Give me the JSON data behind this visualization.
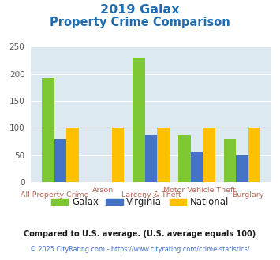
{
  "title_line1": "2019 Galax",
  "title_line2": "Property Crime Comparison",
  "categories_row1": [
    "All Property Crime",
    "",
    "Larceny & Theft",
    "Motor Vehicle Theft",
    "Burglary"
  ],
  "categories_row2": [
    "",
    "Arson",
    "",
    "",
    ""
  ],
  "galax": [
    193,
    0,
    230,
    87,
    80
  ],
  "virginia": [
    78,
    0,
    88,
    56,
    49
  ],
  "national": [
    100,
    100,
    100,
    100,
    100
  ],
  "colors": {
    "galax": "#7dc832",
    "virginia": "#4472c4",
    "national": "#ffc000"
  },
  "ylim": [
    0,
    250
  ],
  "yticks": [
    0,
    50,
    100,
    150,
    200,
    250
  ],
  "bg_color": "#dce9f0",
  "title_color": "#1f6cb0",
  "footer1": "Compared to U.S. average. (U.S. average equals 100)",
  "footer2": "© 2025 CityRating.com - https://www.cityrating.com/crime-statistics/",
  "footer1_color": "#1a1a1a",
  "footer2_color": "#4472c4",
  "xlabel_color": "#bb6655",
  "legend_text_color": "#222222"
}
